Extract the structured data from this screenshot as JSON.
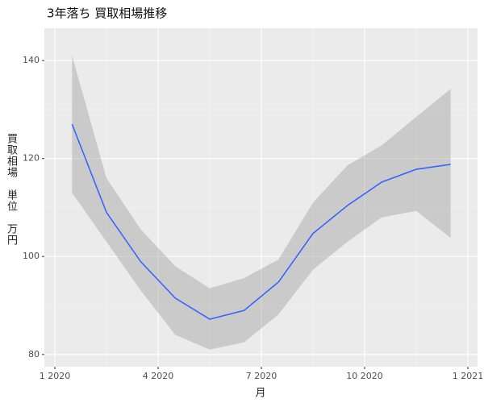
{
  "chart_data": {
    "type": "smooth",
    "title": "3年落ち 買取相場推移",
    "x_label": "月",
    "y_label": "買取相場 単位 万円",
    "x": [
      "2020-01",
      "2020-02",
      "2020-03",
      "2020-04",
      "2020-05",
      "2020-06",
      "2020-07",
      "2020-08",
      "2020-09",
      "2020-10",
      "2020-11",
      "2020-12"
    ],
    "values": [
      127,
      109,
      98.9,
      91.5,
      87.2,
      89,
      94.8,
      104.7,
      110.4,
      115.2,
      117.8,
      118.8
    ],
    "lower": [
      113,
      103,
      93,
      84,
      81,
      82.5,
      88.2,
      97.3,
      103,
      108,
      109.3,
      103.8
    ],
    "upper": [
      141,
      116,
      105.5,
      98,
      93.5,
      95.6,
      99.4,
      111,
      118.6,
      122.7,
      128.5,
      134.2
    ],
    "color": "#3366ff",
    "band_color": "#999999",
    "ylim": [
      77.5,
      146.6
    ],
    "yticks": [
      80,
      100,
      120,
      140
    ],
    "xticks": [
      {
        "value": "2020-01",
        "label": "1 2020"
      },
      {
        "value": "2020-04",
        "label": "4 2020"
      },
      {
        "value": "2020-07",
        "label": "7 2020"
      },
      {
        "value": "2020-10",
        "label": "10 2020"
      },
      {
        "value": "2021-01",
        "label": "1 2021"
      }
    ],
    "grid": true
  }
}
